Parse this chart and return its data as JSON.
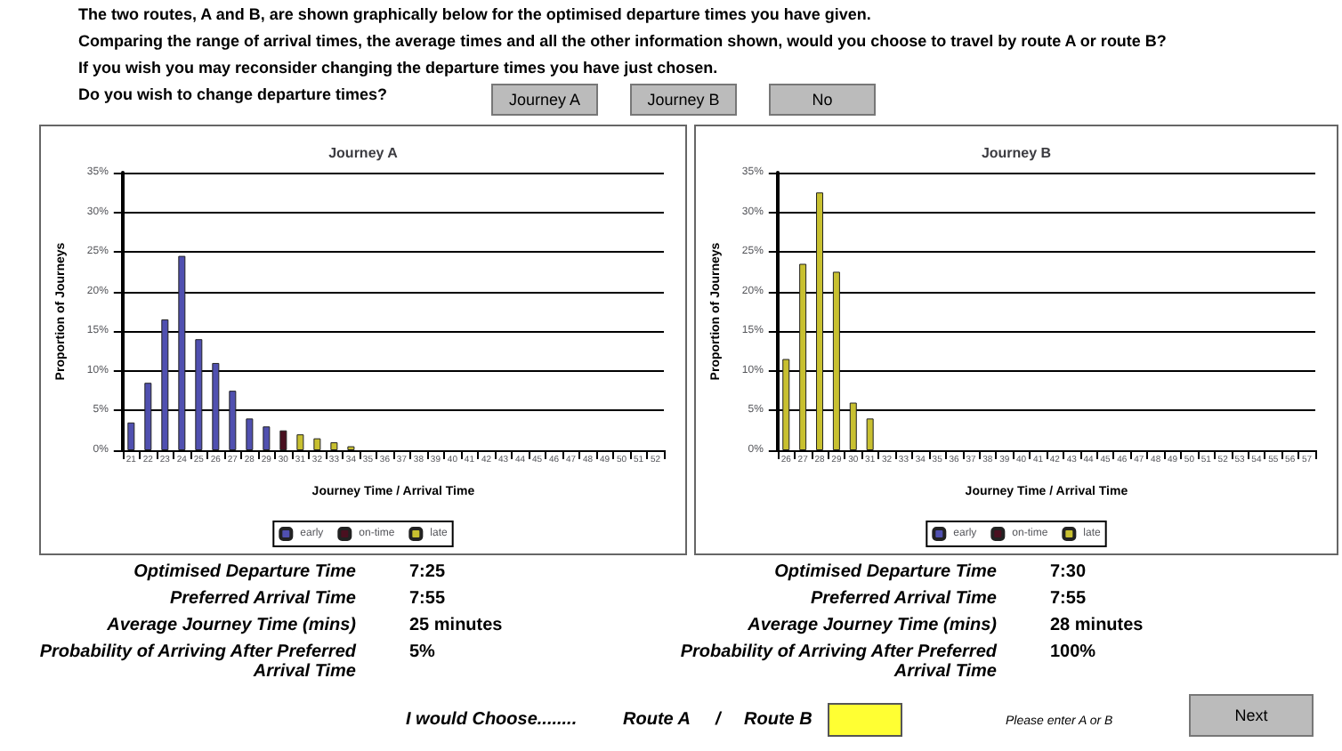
{
  "chart_data": [
    {
      "type": "other",
      "annotations": [
        "The two routes, A and B, are shown graphically below for the optimised departure times you have given.",
        "Comparing the range of arrival times, the average times and all the other information shown, would you choose to travel by route A or route B?",
        "If you wish you may reconsider changing the departure times you have just chosen.",
        "Do you wish to change departure times?",
        "Journey A",
        "Journey B",
        "No"
      ]
    },
    {
      "type": "bar",
      "title": "Journey A",
      "xlabel": "Journey Time / Arrival Time",
      "ylabel": "Proportion of Journeys",
      "stacked": true,
      "grid": "y",
      "legend": "bottom",
      "categories": [
        "21",
        "22",
        "23",
        "24",
        "25",
        "26",
        "27",
        "28",
        "29",
        "30",
        "31",
        "32",
        "33",
        "34",
        "35",
        "36",
        "37",
        "38",
        "39",
        "40",
        "41",
        "42",
        "43",
        "44",
        "45",
        "46",
        "47",
        "48",
        "49",
        "50",
        "51",
        "52"
      ],
      "ylim": [
        0,
        35
      ],
      "yticks": [
        {
          "value": 0,
          "label": "0%"
        },
        {
          "value": 5,
          "label": "5%"
        },
        {
          "value": 10,
          "label": "10%"
        },
        {
          "value": 15,
          "label": "15%"
        },
        {
          "value": 20,
          "label": "20%"
        },
        {
          "value": 25,
          "label": "25%"
        },
        {
          "value": 30,
          "label": "30%"
        },
        {
          "value": 35,
          "label": "35%"
        }
      ],
      "series": [
        {
          "name": "early",
          "color": "#5050b0",
          "values": [
            3.5,
            8.5,
            16.5,
            24.5,
            14,
            11,
            7.5,
            4,
            3,
            null,
            null,
            null,
            null,
            null,
            null,
            null,
            null,
            null,
            null,
            null,
            null,
            null,
            null,
            null,
            null,
            null,
            null,
            null,
            null,
            null,
            null,
            null
          ]
        },
        {
          "name": "on-time",
          "color": "#4a1020",
          "values": [
            null,
            null,
            null,
            null,
            null,
            null,
            null,
            null,
            null,
            2.5,
            null,
            null,
            null,
            null,
            null,
            null,
            null,
            null,
            null,
            null,
            null,
            null,
            null,
            null,
            null,
            null,
            null,
            null,
            null,
            null,
            null,
            null
          ]
        },
        {
          "name": "late",
          "color": "#c8c030",
          "values": [
            null,
            null,
            null,
            null,
            null,
            null,
            null,
            null,
            null,
            null,
            2,
            1.5,
            1,
            0.5,
            null,
            null,
            null,
            null,
            null,
            null,
            null,
            null,
            null,
            null,
            null,
            null,
            null,
            null,
            null,
            null,
            null,
            null
          ]
        }
      ],
      "annotations": [
        "Optimised Departure Time",
        "7:25",
        "Preferred Arrival Time",
        "7:55",
        "Average Journey Time (mins)",
        "25 minutes",
        "Probability of Arriving After Preferred Arrival Time",
        "5%"
      ]
    },
    {
      "type": "bar",
      "title": "Journey B",
      "xlabel": "Journey Time / Arrival Time",
      "ylabel": "Proportion of Journeys",
      "stacked": true,
      "grid": "y",
      "legend": "bottom",
      "categories": [
        "26",
        "27",
        "28",
        "29",
        "30",
        "31",
        "32",
        "33",
        "34",
        "35",
        "36",
        "37",
        "38",
        "39",
        "40",
        "41",
        "42",
        "43",
        "44",
        "45",
        "46",
        "47",
        "48",
        "49",
        "50",
        "51",
        "52",
        "53",
        "54",
        "55",
        "56",
        "57"
      ],
      "ylim": [
        0,
        35
      ],
      "yticks": [
        {
          "value": 0,
          "label": "0%"
        },
        {
          "value": 5,
          "label": "5%"
        },
        {
          "value": 10,
          "label": "10%"
        },
        {
          "value": 15,
          "label": "15%"
        },
        {
          "value": 20,
          "label": "20%"
        },
        {
          "value": 25,
          "label": "25%"
        },
        {
          "value": 30,
          "label": "30%"
        },
        {
          "value": 35,
          "label": "35%"
        }
      ],
      "series": [
        {
          "name": "early",
          "color": "#5050b0",
          "values": [
            null,
            null,
            null,
            null,
            null,
            null,
            null,
            null,
            null,
            null,
            null,
            null,
            null,
            null,
            null,
            null,
            null,
            null,
            null,
            null,
            null,
            null,
            null,
            null,
            null,
            null,
            null,
            null,
            null,
            null,
            null,
            null
          ]
        },
        {
          "name": "on-time",
          "color": "#4a1020",
          "values": [
            null,
            null,
            null,
            null,
            null,
            null,
            null,
            null,
            null,
            null,
            null,
            null,
            null,
            null,
            null,
            null,
            null,
            null,
            null,
            null,
            null,
            null,
            null,
            null,
            null,
            null,
            null,
            null,
            null,
            null,
            null,
            null
          ]
        },
        {
          "name": "late",
          "color": "#c8c030",
          "values": [
            11.5,
            23.5,
            32.5,
            22.5,
            6,
            4,
            null,
            null,
            null,
            null,
            null,
            null,
            null,
            null,
            null,
            null,
            null,
            null,
            null,
            null,
            null,
            null,
            null,
            null,
            null,
            null,
            null,
            null,
            null,
            null,
            null,
            null
          ]
        }
      ],
      "annotations": [
        "Optimised Departure Time",
        "7:30",
        "Preferred Arrival Time",
        "7:55",
        "Average Journey Time (mins)",
        "28 minutes",
        "Probability of Arriving After Preferred Arrival Time",
        "100%"
      ]
    },
    {
      "type": "other",
      "annotations": [
        "I would Choose........",
        "Route A",
        "/",
        "Route B",
        "Please enter A or B",
        "Next"
      ]
    }
  ]
}
